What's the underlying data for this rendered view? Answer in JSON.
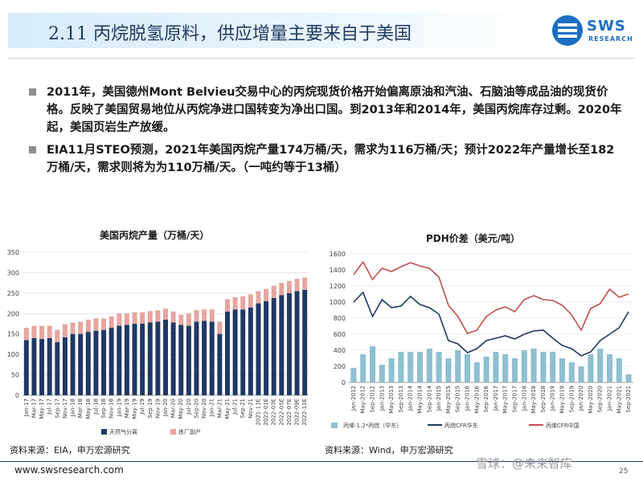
{
  "header": {
    "title": "2.11 丙烷脱氢原料，供应增量主要来自于美国",
    "logo_text": "SWS",
    "logo_sub": "RESEARCH"
  },
  "bullets": [
    "2011年，美国德州Mont Belvieu交易中心的丙烷现货价格开始偏离原油和汽油、石脑油等成品油的现货价格。反映了美国贸易地位从丙烷净进口国转变为净出口国。到2013年和2014年，美国丙烷库存过剩。2020年起，美国页岩生产放缓。",
    "EIA11月STEO预测，2021年美国丙烷产量174万桶/天，需求为116万桶/天；预计2022年产量增长至182万桶/天，需求则将为为110万桶/天。（一吨约等于13桶）"
  ],
  "sources": {
    "left": "资料来源：EIA，申万宏源研究",
    "right": "资料来源：Wind，申万宏源研究"
  },
  "footer": {
    "url": "www.swsresearch.com",
    "watermark": "雪球：@未来智库",
    "page": "25"
  },
  "colors": {
    "navy": "#1f3864",
    "salmon": "#e6a5a0",
    "teal": "#8fbfd0",
    "red": "#c0504d"
  },
  "chart_data": [
    {
      "type": "bar",
      "stacked": true,
      "title": "美国丙烷产量（万桶/天）",
      "ylim": [
        0,
        350
      ],
      "yticks": [
        0,
        50,
        100,
        150,
        200,
        250,
        300,
        350
      ],
      "grid": true,
      "legend_position": "bottom",
      "categories": [
        "Jan-17",
        "Mar-17",
        "May-17",
        "Jul-17",
        "Sep-17",
        "Nov-17",
        "Jan-18",
        "Mar-18",
        "May-18",
        "Jul-18",
        "Sep-18",
        "Nov-18",
        "Jan-19",
        "Mar-19",
        "May-19",
        "Jul-19",
        "Sep-19",
        "Nov-19",
        "Jan-20",
        "Mar-20",
        "May-20",
        "Jul-20",
        "Sep-20",
        "Nov-20",
        "Jan-21",
        "Mar-21",
        "May-21",
        "Jul-21",
        "Sep-21",
        "Nov-21",
        "2021-11E",
        "2022-01E",
        "2022-03E",
        "2022-05E",
        "2022-07E",
        "2022-09E",
        "2022-11E"
      ],
      "series": [
        {
          "name": "天然气分离",
          "color": "#1f3864",
          "values": [
            135,
            140,
            138,
            140,
            130,
            142,
            150,
            150,
            155,
            158,
            160,
            165,
            170,
            172,
            175,
            175,
            178,
            180,
            185,
            178,
            172,
            170,
            180,
            182,
            180,
            150,
            205,
            210,
            210,
            215,
            225,
            230,
            238,
            245,
            250,
            255,
            258
          ]
        },
        {
          "name": "炼厂副产",
          "color": "#e6a5a0",
          "values": [
            30,
            30,
            32,
            30,
            30,
            32,
            28,
            30,
            30,
            30,
            28,
            28,
            30,
            28,
            28,
            28,
            28,
            28,
            27,
            27,
            25,
            30,
            28,
            28,
            30,
            30,
            30,
            30,
            32,
            32,
            30,
            30,
            30,
            30,
            30,
            30,
            30
          ]
        }
      ]
    },
    {
      "type": "line",
      "title": "PDH价差（美元/吨）",
      "ylim": [
        0,
        1600
      ],
      "yticks": [
        0,
        200,
        400,
        600,
        800,
        1000,
        1200,
        1400,
        1600
      ],
      "grid": true,
      "legend_position": "bottom",
      "x": [
        "Jan-2012",
        "May-2012",
        "Sep-2012",
        "Jan-2013",
        "May-2013",
        "Sep-2013",
        "Jan-2014",
        "May-2014",
        "Sep-2014",
        "Jan-2015",
        "May-2015",
        "Sep-2015",
        "Jan-2016",
        "May-2016",
        "Sep-2016",
        "Jan-2017",
        "May-2017",
        "Sep-2017",
        "Jan-2018",
        "May-2018",
        "Sep-2018",
        "Jan-2019",
        "May-2019",
        "Sep-2019",
        "Jan-2020",
        "May-2020",
        "Sep-2020",
        "Jan-2021",
        "May-2021",
        "Sep-2021"
      ],
      "series": [
        {
          "name": "丙烯-1.2*丙烷（华东）",
          "type": "bar",
          "color": "#8fbfd0",
          "values": [
            180,
            350,
            450,
            220,
            300,
            380,
            380,
            380,
            420,
            380,
            300,
            400,
            350,
            250,
            320,
            380,
            350,
            300,
            400,
            420,
            380,
            380,
            300,
            250,
            200,
            350,
            420,
            350,
            300,
            100
          ]
        },
        {
          "name": "丙烷CFR华东",
          "type": "line",
          "color": "#1f3864",
          "values": [
            1000,
            1120,
            820,
            1030,
            930,
            950,
            1070,
            970,
            930,
            850,
            520,
            480,
            370,
            420,
            520,
            550,
            580,
            540,
            600,
            640,
            650,
            550,
            460,
            420,
            330,
            380,
            520,
            600,
            680,
            880
          ]
        },
        {
          "name": "丙烯CFR中国",
          "type": "line",
          "color": "#c0504d",
          "values": [
            1340,
            1500,
            1280,
            1420,
            1380,
            1440,
            1490,
            1450,
            1420,
            1310,
            960,
            820,
            610,
            650,
            820,
            900,
            940,
            880,
            1030,
            1080,
            1030,
            1020,
            960,
            840,
            650,
            920,
            980,
            1160,
            1060,
            1100
          ]
        }
      ]
    }
  ]
}
